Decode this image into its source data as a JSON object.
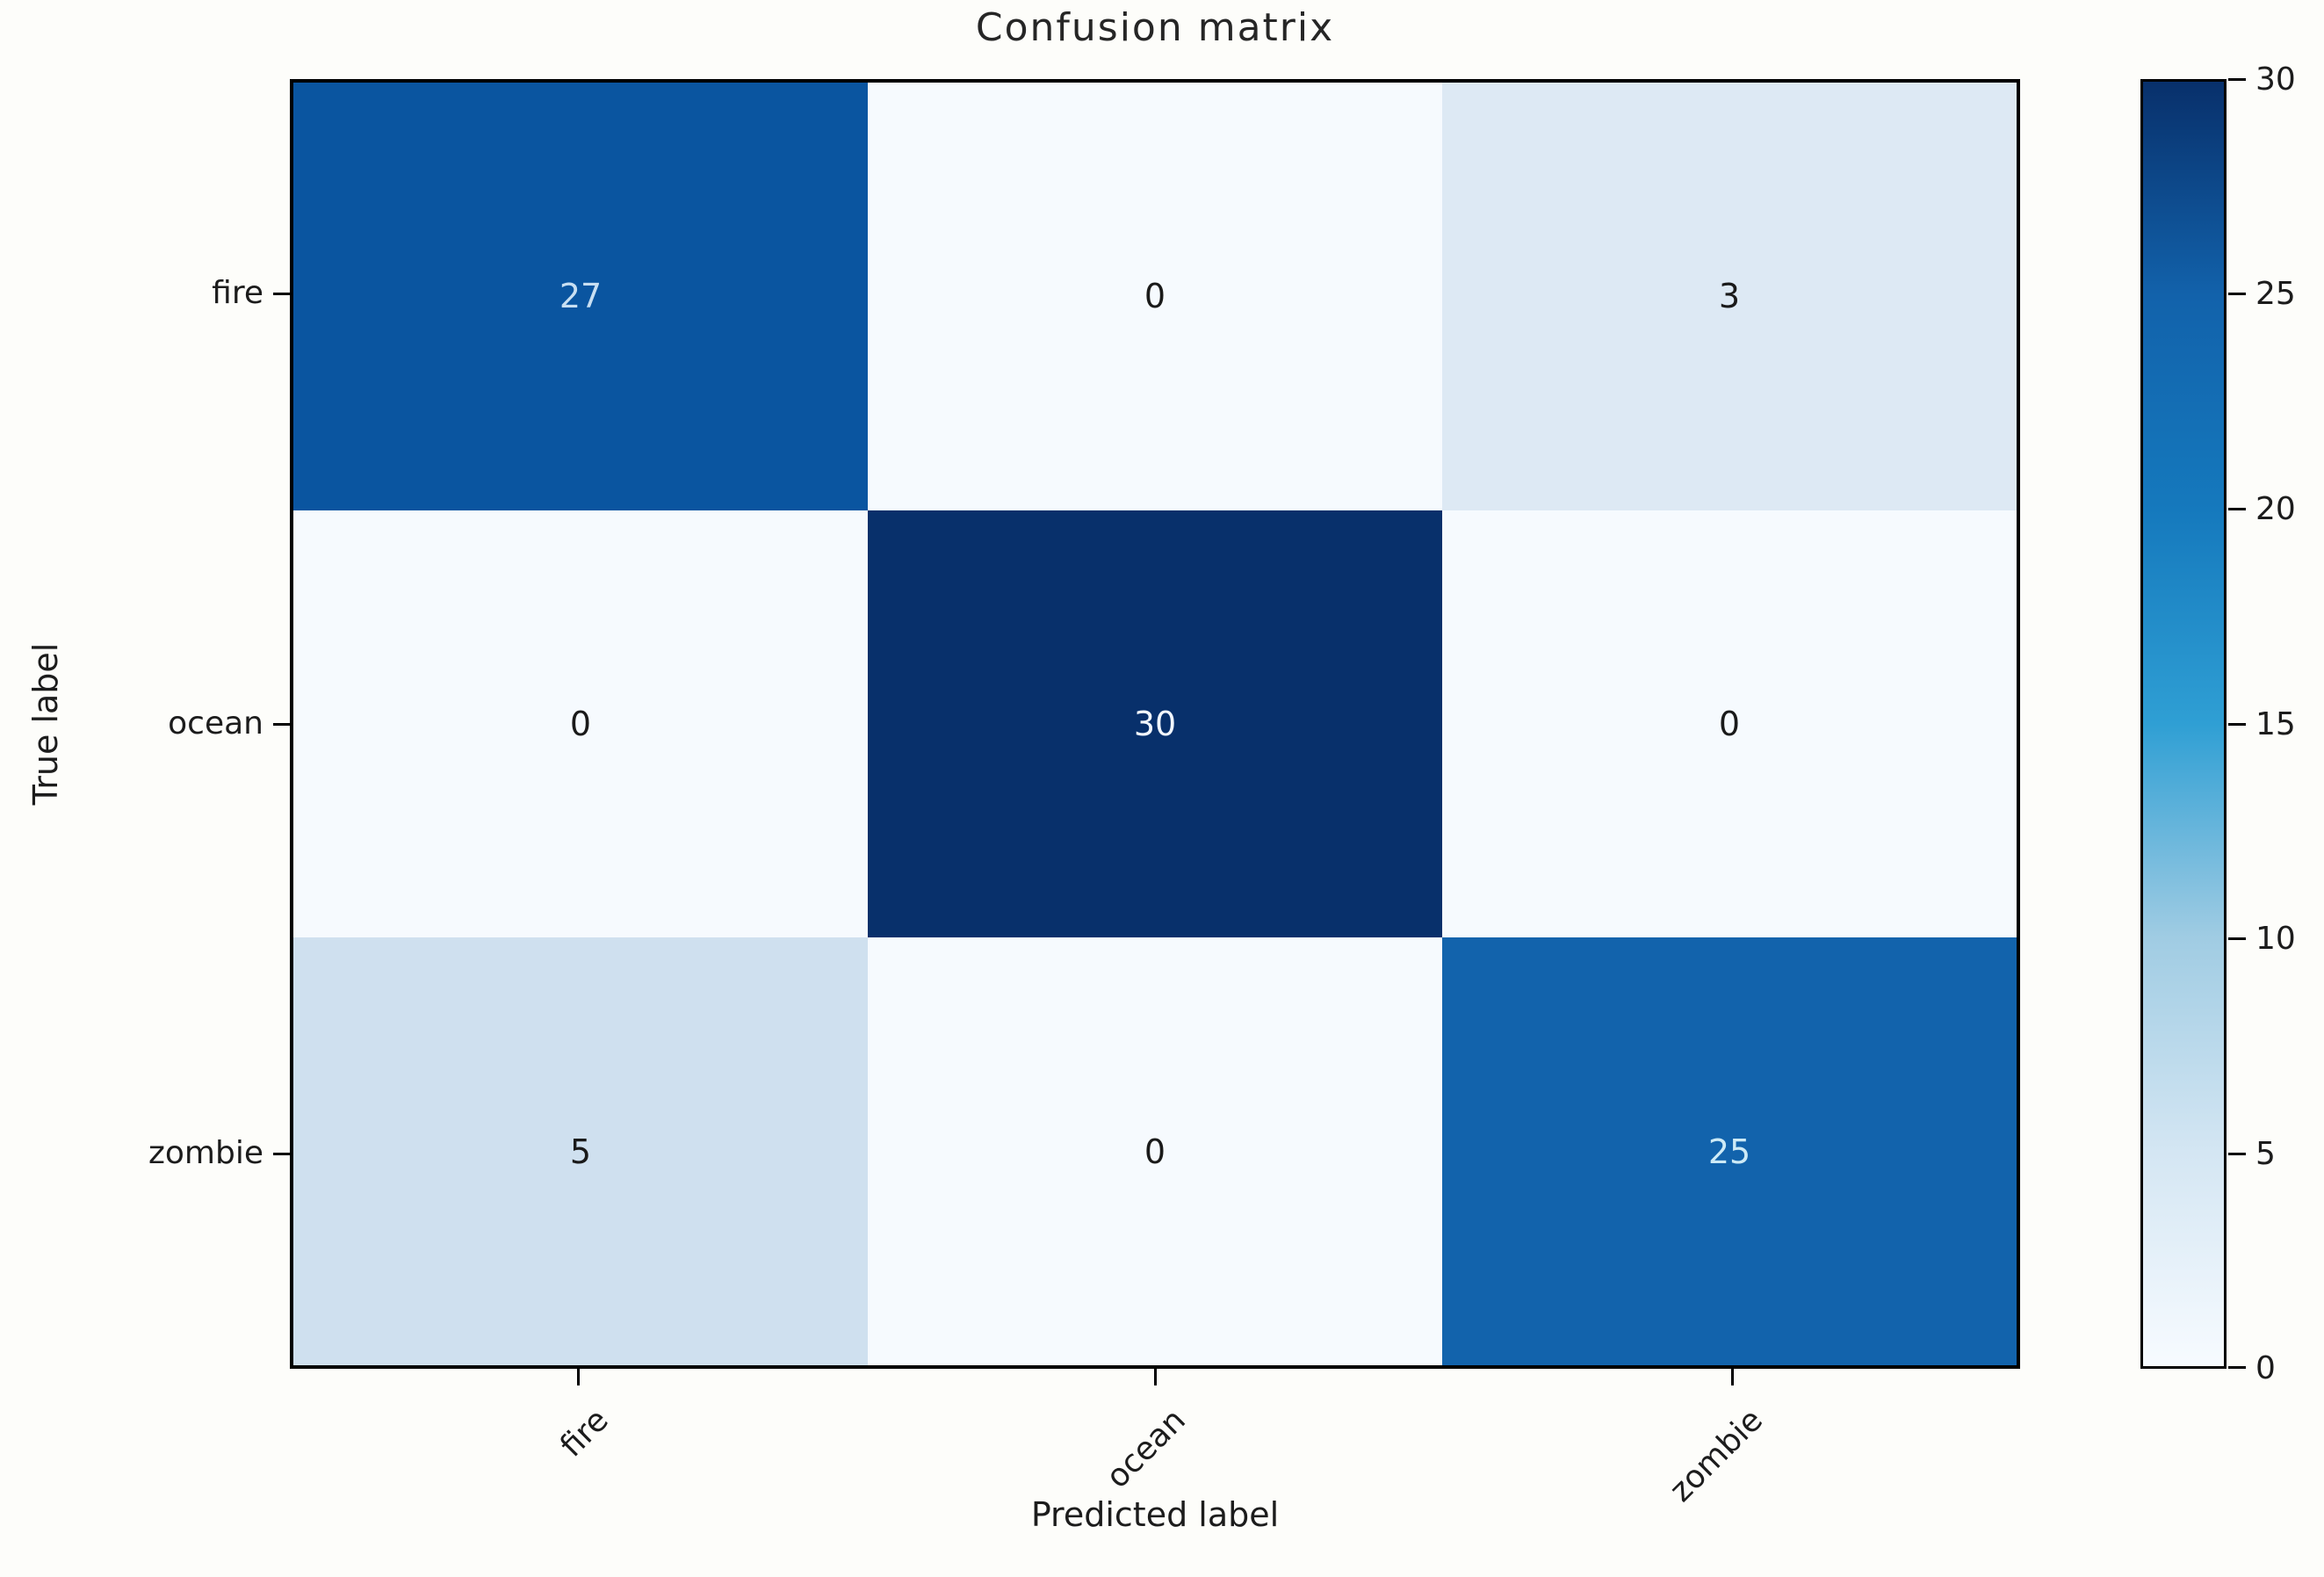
{
  "figure": {
    "background": "#fdfdfa",
    "frame_color": "#000000",
    "text_color": "#1c1c1c"
  },
  "chart_data": {
    "type": "heatmap",
    "title": "Confusion matrix",
    "xlabel": "Predicted label",
    "ylabel": "True label",
    "x_categories": [
      "fire",
      "ocean",
      "zombie"
    ],
    "y_categories": [
      "fire",
      "ocean",
      "zombie"
    ],
    "matrix": [
      [
        27,
        0,
        3
      ],
      [
        0,
        30,
        0
      ],
      [
        5,
        0,
        25
      ]
    ],
    "colormap": "Blues",
    "vmin": 0,
    "vmax": 30,
    "grid": false,
    "legend_position": "right-colorbar",
    "colorbar_ticks": [
      30,
      25,
      20,
      15,
      10,
      5,
      0
    ],
    "cell_colors": [
      [
        "#0a55a0",
        "#f6fafe",
        "#dde9f4"
      ],
      [
        "#f6fafe",
        "#08306b",
        "#f6fafe"
      ],
      [
        "#cfe0ef",
        "#f6fafe",
        "#1263ac"
      ]
    ],
    "cell_text_colors": [
      [
        "#c8dff2",
        "#1a1a1a",
        "#1a1a1a"
      ],
      [
        "#1a1a1a",
        "#f2f7ff",
        "#1a1a1a"
      ],
      [
        "#1a1a1a",
        "#1a1a1a",
        "#cdeaf6"
      ]
    ],
    "colorbar_gradient": [
      "#08306b",
      "#1262ab",
      "#1579bd",
      "#2f9fd4",
      "#a0cce3",
      "#d4e6f3",
      "#f7fbff"
    ]
  }
}
